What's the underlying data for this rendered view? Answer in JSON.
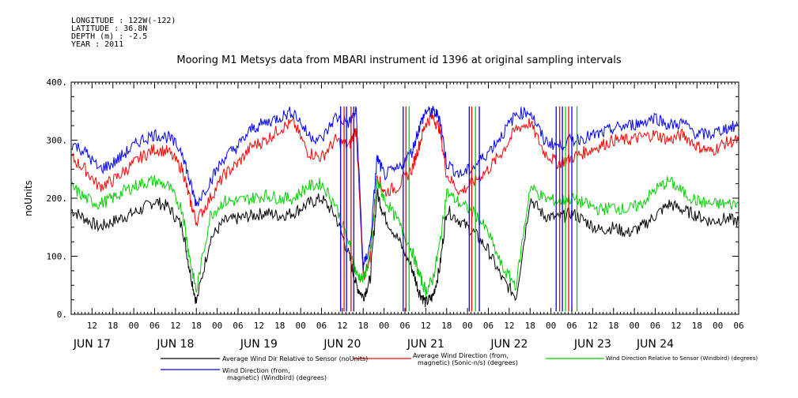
{
  "header": {
    "longitude": "LONGITUDE : 122W(-122)",
    "latitude": "LATITUDE : 36.8N",
    "depth": "DEPTH (m) : -2.5",
    "year": "YEAR : 2011"
  },
  "chart_data": {
    "type": "line",
    "title": "Mooring M1 Metsys data from MBARI instrument id 1396 at original sampling intervals",
    "ylabel": "noUnits",
    "ylim": [
      0,
      400
    ],
    "yticks": [
      0,
      100,
      200,
      300,
      400
    ],
    "ytick_labels": [
      "0.",
      "100.",
      "200.",
      "300.",
      "400."
    ],
    "x_unit": "hours since 2011-06-16 06:00",
    "xlim": [
      0,
      192
    ],
    "hour_ticks": [
      {
        "x": 6,
        "label": "12"
      },
      {
        "x": 12,
        "label": "18"
      },
      {
        "x": 18,
        "label": "00"
      },
      {
        "x": 24,
        "label": "06"
      },
      {
        "x": 30,
        "label": "12"
      },
      {
        "x": 36,
        "label": "18"
      },
      {
        "x": 42,
        "label": "00"
      },
      {
        "x": 48,
        "label": "06"
      },
      {
        "x": 54,
        "label": "12"
      },
      {
        "x": 60,
        "label": "18"
      },
      {
        "x": 66,
        "label": "00"
      },
      {
        "x": 72,
        "label": "06"
      },
      {
        "x": 78,
        "label": "12"
      },
      {
        "x": 84,
        "label": "18"
      },
      {
        "x": 90,
        "label": "00"
      },
      {
        "x": 96,
        "label": "06"
      },
      {
        "x": 102,
        "label": "12"
      },
      {
        "x": 108,
        "label": "18"
      },
      {
        "x": 114,
        "label": "00"
      },
      {
        "x": 120,
        "label": "06"
      },
      {
        "x": 126,
        "label": "12"
      },
      {
        "x": 132,
        "label": "18"
      },
      {
        "x": 138,
        "label": "00"
      },
      {
        "x": 144,
        "label": "06"
      },
      {
        "x": 150,
        "label": "12"
      },
      {
        "x": 156,
        "label": "18"
      },
      {
        "x": 162,
        "label": "00"
      },
      {
        "x": 168,
        "label": "06"
      },
      {
        "x": 174,
        "label": "12"
      },
      {
        "x": 180,
        "label": "18"
      },
      {
        "x": 186,
        "label": "00"
      },
      {
        "x": 192,
        "label": "06"
      }
    ],
    "day_labels": [
      {
        "x": 6,
        "label": "JUN 17"
      },
      {
        "x": 30,
        "label": "JUN 18"
      },
      {
        "x": 54,
        "label": "JUN 19"
      },
      {
        "x": 78,
        "label": "JUN 20"
      },
      {
        "x": 102,
        "label": "JUN 21"
      },
      {
        "x": 126,
        "label": "JUN 22"
      },
      {
        "x": 150,
        "label": "JUN 23"
      },
      {
        "x": 168,
        "label": "JUN 24"
      }
    ],
    "legend_placement": "bottom",
    "series": [
      {
        "name": "Average Wind Dir Relative to Sensor (noUnits)",
        "color": "#000000",
        "x": [
          0,
          4,
          8,
          12,
          16,
          20,
          24,
          28,
          32,
          34,
          36,
          40,
          44,
          48,
          52,
          56,
          60,
          64,
          68,
          72,
          76,
          80,
          82,
          84,
          86,
          88,
          90,
          94,
          98,
          100,
          102,
          104,
          106,
          108,
          112,
          116,
          120,
          124,
          128,
          132,
          136,
          140,
          144,
          148,
          152,
          156,
          160,
          164,
          168,
          172,
          176,
          180,
          184,
          188,
          192
        ],
        "y": [
          180,
          165,
          150,
          160,
          170,
          180,
          195,
          185,
          150,
          80,
          20,
          130,
          160,
          165,
          170,
          175,
          170,
          175,
          190,
          200,
          170,
          100,
          50,
          30,
          60,
          210,
          170,
          130,
          80,
          40,
          20,
          30,
          80,
          180,
          160,
          140,
          110,
          60,
          30,
          200,
          170,
          165,
          175,
          160,
          145,
          150,
          140,
          150,
          170,
          190,
          180,
          170,
          160,
          165,
          160
        ]
      },
      {
        "name": "Average Wind Direction (from, magnetic) (Sonic-n/s) (degrees)",
        "color": "#ff0000",
        "x": [
          0,
          4,
          8,
          12,
          16,
          20,
          24,
          28,
          32,
          34,
          36,
          40,
          44,
          48,
          52,
          56,
          60,
          64,
          68,
          72,
          76,
          80,
          82,
          84,
          86,
          88,
          90,
          94,
          98,
          100,
          102,
          104,
          106,
          108,
          112,
          116,
          120,
          124,
          128,
          132,
          136,
          140,
          144,
          148,
          152,
          156,
          160,
          164,
          168,
          172,
          176,
          180,
          184,
          188,
          192
        ],
        "y": [
          270,
          250,
          220,
          230,
          250,
          270,
          285,
          280,
          250,
          200,
          160,
          200,
          240,
          260,
          290,
          300,
          320,
          330,
          280,
          270,
          300,
          290,
          320,
          60,
          100,
          240,
          210,
          220,
          250,
          290,
          330,
          340,
          320,
          240,
          210,
          230,
          250,
          280,
          320,
          330,
          280,
          260,
          270,
          280,
          290,
          300,
          300,
          305,
          310,
          300,
          310,
          290,
          280,
          295,
          300
        ]
      },
      {
        "name": "Wind Direction Relative to Sensor (Windbird) (degrees)",
        "color": "#00d000",
        "x": [
          0,
          4,
          8,
          12,
          16,
          20,
          24,
          28,
          32,
          34,
          36,
          40,
          44,
          48,
          52,
          56,
          60,
          64,
          68,
          72,
          76,
          80,
          82,
          84,
          86,
          88,
          90,
          94,
          98,
          100,
          102,
          104,
          106,
          108,
          112,
          116,
          120,
          124,
          128,
          132,
          136,
          140,
          144,
          148,
          152,
          156,
          160,
          164,
          168,
          172,
          176,
          180,
          184,
          188,
          192
        ],
        "y": [
          220,
          200,
          190,
          200,
          215,
          225,
          230,
          220,
          180,
          100,
          40,
          170,
          195,
          195,
          200,
          205,
          200,
          200,
          220,
          225,
          190,
          120,
          70,
          60,
          100,
          230,
          200,
          160,
          110,
          70,
          40,
          60,
          120,
          210,
          190,
          175,
          140,
          80,
          50,
          220,
          200,
          195,
          200,
          190,
          180,
          185,
          180,
          190,
          215,
          230,
          210,
          195,
          190,
          190,
          190
        ]
      },
      {
        "name": "Wind Direction (from, magnetic) (Windbird) (degrees)",
        "color": "#0000ff",
        "x": [
          0,
          4,
          8,
          12,
          16,
          20,
          24,
          28,
          32,
          34,
          36,
          40,
          44,
          48,
          52,
          56,
          60,
          64,
          68,
          72,
          76,
          80,
          82,
          84,
          86,
          88,
          90,
          94,
          98,
          100,
          102,
          104,
          106,
          108,
          112,
          116,
          120,
          124,
          128,
          132,
          136,
          140,
          144,
          148,
          152,
          156,
          160,
          164,
          168,
          172,
          176,
          180,
          184,
          188,
          192
        ],
        "y": [
          295,
          280,
          250,
          260,
          280,
          300,
          310,
          305,
          280,
          230,
          190,
          230,
          270,
          290,
          320,
          330,
          340,
          350,
          310,
          300,
          340,
          330,
          350,
          80,
          120,
          270,
          240,
          250,
          280,
          320,
          350,
          350,
          340,
          260,
          240,
          255,
          280,
          310,
          345,
          350,
          300,
          290,
          300,
          305,
          310,
          320,
          325,
          330,
          340,
          325,
          330,
          310,
          310,
          320,
          325
        ]
      }
    ],
    "spikes": [
      {
        "x": [
          77.5,
          78.5,
          79.2,
          80.5,
          81.3
        ],
        "series": [
          "#0000ff",
          "#ff0000",
          "#0000ff",
          "#ff0000",
          "#0000ff"
        ]
      },
      {
        "x": [
          95.5,
          96.3,
          97.2
        ],
        "series": [
          "#0000ff",
          "#ff0000",
          "#00d000"
        ]
      },
      {
        "x": [
          114.5,
          115.2,
          116.3,
          117.4
        ],
        "series": [
          "#0000ff",
          "#ff0000",
          "#00d000",
          "#0000ff"
        ]
      },
      {
        "x": [
          139.5,
          140.5,
          141.3,
          142.2,
          143.1,
          144.0,
          145.5
        ],
        "series": [
          "#0000ff",
          "#ff0000",
          "#0000ff",
          "#00d000",
          "#ff0000",
          "#0000ff",
          "#00d000"
        ]
      }
    ]
  },
  "legend": [
    {
      "line1": "Average Wind Dir Relative to Sensor (noUnits)",
      "line2": "",
      "color": "#000000"
    },
    {
      "line1": "Average Wind Direction (from,",
      "line2": "magnetic) (Sonic-n/s) (degrees)",
      "color": "#ff0000"
    },
    {
      "line1": "Wind Direction Relative to Sensor (Windbird) (degrees)",
      "line2": "",
      "color": "#00d000"
    },
    {
      "line1": "Wind Direction (from,",
      "line2": "magnetic) (Windbird) (degrees)",
      "color": "#0000ff"
    }
  ]
}
